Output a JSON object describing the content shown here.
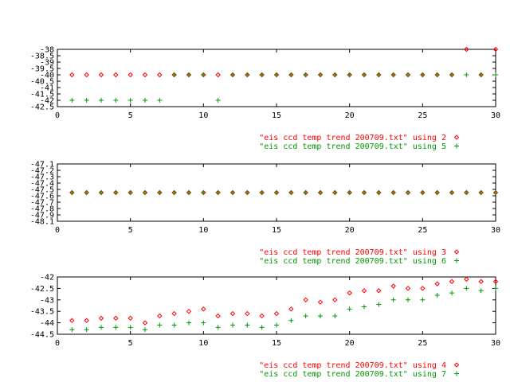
{
  "colors": {
    "series_a": "#ff0000",
    "series_b": "#009900",
    "axis": "#000000",
    "background": "#ffffff"
  },
  "chart_data": [
    {
      "type": "scatter",
      "xlim": [
        0,
        30
      ],
      "ylim": [
        -42.5,
        -38
      ],
      "xticks": [
        "0",
        "5",
        "10",
        "15",
        "20",
        "25",
        "30"
      ],
      "yticks": [
        "-38",
        "-38.5",
        "-39",
        "-39.5",
        "-40",
        "-40.5",
        "-41",
        "-41.5",
        "-42",
        "-42.5"
      ],
      "grid": false,
      "legend_position": "below-right",
      "series": [
        {
          "name": "\"eis ccd temp trend 200709.txt\" using 2",
          "marker": "diamond",
          "color": "#ff0000",
          "points": [
            [
              1,
              -40
            ],
            [
              2,
              -40
            ],
            [
              3,
              -40
            ],
            [
              4,
              -40
            ],
            [
              5,
              -40
            ],
            [
              6,
              -40
            ],
            [
              7,
              -40
            ],
            [
              8,
              -40
            ],
            [
              9,
              -40
            ],
            [
              10,
              -40
            ],
            [
              11,
              -40
            ],
            [
              12,
              -40
            ],
            [
              13,
              -40
            ],
            [
              14,
              -40
            ],
            [
              15,
              -40
            ],
            [
              16,
              -40
            ],
            [
              17,
              -40
            ],
            [
              18,
              -40
            ],
            [
              19,
              -40
            ],
            [
              20,
              -40
            ],
            [
              21,
              -40
            ],
            [
              22,
              -40
            ],
            [
              23,
              -40
            ],
            [
              24,
              -40
            ],
            [
              25,
              -40
            ],
            [
              26,
              -40
            ],
            [
              27,
              -40
            ],
            [
              28,
              -38
            ],
            [
              29,
              -40
            ],
            [
              30,
              -38
            ]
          ]
        },
        {
          "name": "\"eis ccd temp trend 200709.txt\" using 5",
          "marker": "plus",
          "color": "#009900",
          "points": [
            [
              1,
              -42
            ],
            [
              2,
              -42
            ],
            [
              3,
              -42
            ],
            [
              4,
              -42
            ],
            [
              5,
              -42
            ],
            [
              6,
              -42
            ],
            [
              7,
              -42
            ],
            [
              8,
              -40
            ],
            [
              9,
              -40
            ],
            [
              10,
              -40
            ],
            [
              11,
              -42
            ],
            [
              12,
              -40
            ],
            [
              13,
              -40
            ],
            [
              14,
              -40
            ],
            [
              15,
              -40
            ],
            [
              16,
              -40
            ],
            [
              17,
              -40
            ],
            [
              18,
              -40
            ],
            [
              19,
              -40
            ],
            [
              20,
              -40
            ],
            [
              21,
              -40
            ],
            [
              22,
              -40
            ],
            [
              23,
              -40
            ],
            [
              24,
              -40
            ],
            [
              25,
              -40
            ],
            [
              26,
              -40
            ],
            [
              27,
              -40
            ],
            [
              28,
              -40
            ],
            [
              29,
              -40
            ],
            [
              30,
              -40
            ]
          ]
        }
      ]
    },
    {
      "type": "scatter",
      "xlim": [
        0,
        30
      ],
      "ylim": [
        -48.1,
        -47.1
      ],
      "xticks": [
        "0",
        "5",
        "10",
        "15",
        "20",
        "25",
        "30"
      ],
      "yticks": [
        "-47.1",
        "-47.2",
        "-47.3",
        "-47.4",
        "-47.5",
        "-47.6",
        "-47.7",
        "-47.8",
        "-47.9",
        "-48.1"
      ],
      "grid": false,
      "legend_position": "below-right",
      "series": [
        {
          "name": "\"eis ccd temp trend 200709.txt\" using 3",
          "marker": "diamond",
          "color": "#ff0000",
          "points": [
            [
              1,
              -47.6
            ],
            [
              2,
              -47.6
            ],
            [
              3,
              -47.6
            ],
            [
              4,
              -47.6
            ],
            [
              5,
              -47.6
            ],
            [
              6,
              -47.6
            ],
            [
              7,
              -47.6
            ],
            [
              8,
              -47.6
            ],
            [
              9,
              -47.6
            ],
            [
              10,
              -47.6
            ],
            [
              11,
              -47.6
            ],
            [
              12,
              -47.6
            ],
            [
              13,
              -47.6
            ],
            [
              14,
              -47.6
            ],
            [
              15,
              -47.6
            ],
            [
              16,
              -47.6
            ],
            [
              17,
              -47.6
            ],
            [
              18,
              -47.6
            ],
            [
              19,
              -47.6
            ],
            [
              20,
              -47.6
            ],
            [
              21,
              -47.6
            ],
            [
              22,
              -47.6
            ],
            [
              23,
              -47.6
            ],
            [
              24,
              -47.6
            ],
            [
              25,
              -47.6
            ],
            [
              26,
              -47.6
            ],
            [
              27,
              -47.6
            ],
            [
              28,
              -47.6
            ],
            [
              29,
              -47.6
            ],
            [
              30,
              -47.6
            ]
          ]
        },
        {
          "name": "\"eis ccd temp trend 200709.txt\" using 6",
          "marker": "plus",
          "color": "#009900",
          "points": [
            [
              1,
              -47.6
            ],
            [
              2,
              -47.6
            ],
            [
              3,
              -47.6
            ],
            [
              4,
              -47.6
            ],
            [
              5,
              -47.6
            ],
            [
              6,
              -47.6
            ],
            [
              7,
              -47.6
            ],
            [
              8,
              -47.6
            ],
            [
              9,
              -47.6
            ],
            [
              10,
              -47.6
            ],
            [
              11,
              -47.6
            ],
            [
              12,
              -47.6
            ],
            [
              13,
              -47.6
            ],
            [
              14,
              -47.6
            ],
            [
              15,
              -47.6
            ],
            [
              16,
              -47.6
            ],
            [
              17,
              -47.6
            ],
            [
              18,
              -47.6
            ],
            [
              19,
              -47.6
            ],
            [
              20,
              -47.6
            ],
            [
              21,
              -47.6
            ],
            [
              22,
              -47.6
            ],
            [
              23,
              -47.6
            ],
            [
              24,
              -47.6
            ],
            [
              25,
              -47.6
            ],
            [
              26,
              -47.6
            ],
            [
              27,
              -47.6
            ],
            [
              28,
              -47.6
            ],
            [
              29,
              -47.6
            ],
            [
              30,
              -47.6
            ]
          ]
        }
      ]
    },
    {
      "type": "scatter",
      "xlim": [
        0,
        30
      ],
      "ylim": [
        -44.5,
        -42
      ],
      "xticks": [
        "0",
        "5",
        "10",
        "15",
        "20",
        "25",
        "30"
      ],
      "yticks": [
        "-42",
        "-42.5",
        "-43",
        "-43.5",
        "-44",
        "-44.5"
      ],
      "grid": false,
      "legend_position": "below-right",
      "series": [
        {
          "name": "\"eis ccd temp trend 200709.txt\" using 4",
          "marker": "diamond",
          "color": "#ff0000",
          "points": [
            [
              1,
              -43.9
            ],
            [
              2,
              -43.9
            ],
            [
              3,
              -43.8
            ],
            [
              4,
              -43.8
            ],
            [
              5,
              -43.8
            ],
            [
              6,
              -44
            ],
            [
              7,
              -43.7
            ],
            [
              8,
              -43.6
            ],
            [
              9,
              -43.5
            ],
            [
              10,
              -43.4
            ],
            [
              11,
              -43.7
            ],
            [
              12,
              -43.6
            ],
            [
              13,
              -43.6
            ],
            [
              14,
              -43.7
            ],
            [
              15,
              -43.6
            ],
            [
              16,
              -43.4
            ],
            [
              17,
              -43
            ],
            [
              18,
              -43.1
            ],
            [
              19,
              -43
            ],
            [
              20,
              -42.7
            ],
            [
              21,
              -42.6
            ],
            [
              22,
              -42.6
            ],
            [
              23,
              -42.4
            ],
            [
              24,
              -42.5
            ],
            [
              25,
              -42.5
            ],
            [
              26,
              -42.3
            ],
            [
              27,
              -42.2
            ],
            [
              28,
              -42.1
            ],
            [
              29,
              -42.2
            ],
            [
              30,
              -42.2
            ]
          ]
        },
        {
          "name": "\"eis ccd temp trend 200709.txt\" using 7",
          "marker": "plus",
          "color": "#009900",
          "points": [
            [
              1,
              -44.3
            ],
            [
              2,
              -44.3
            ],
            [
              3,
              -44.2
            ],
            [
              4,
              -44.2
            ],
            [
              5,
              -44.2
            ],
            [
              6,
              -44.3
            ],
            [
              7,
              -44.1
            ],
            [
              8,
              -44.1
            ],
            [
              9,
              -44
            ],
            [
              10,
              -44
            ],
            [
              11,
              -44.2
            ],
            [
              12,
              -44.1
            ],
            [
              13,
              -44.1
            ],
            [
              14,
              -44.2
            ],
            [
              15,
              -44.1
            ],
            [
              16,
              -43.9
            ],
            [
              17,
              -43.7
            ],
            [
              18,
              -43.7
            ],
            [
              19,
              -43.7
            ],
            [
              20,
              -43.4
            ],
            [
              21,
              -43.3
            ],
            [
              22,
              -43.2
            ],
            [
              23,
              -43
            ],
            [
              24,
              -43
            ],
            [
              25,
              -43
            ],
            [
              26,
              -42.8
            ],
            [
              27,
              -42.7
            ],
            [
              28,
              -42.5
            ],
            [
              29,
              -42.6
            ],
            [
              30,
              -42.5
            ]
          ]
        }
      ]
    }
  ]
}
